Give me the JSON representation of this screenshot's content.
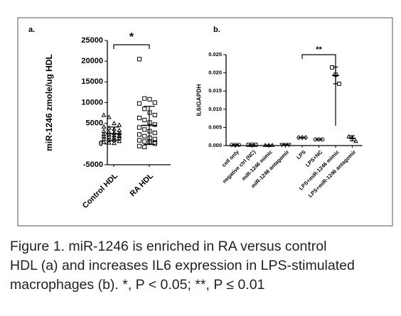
{
  "chart_data": [
    {
      "type": "dotplot",
      "panel": "a.",
      "ylabel": "miR-1246 zmole/ug HDL",
      "annotation": "*",
      "categories": [
        "Control HDL",
        "RA HDL"
      ],
      "markers": [
        "triangle",
        "square"
      ],
      "color": "#000000",
      "ylim": [
        -5000,
        25000
      ],
      "yticks": [
        -5000,
        0,
        5000,
        10000,
        15000,
        20000,
        25000
      ],
      "groups": [
        {
          "values": [
            7000,
            6500,
            5000,
            4600,
            4200,
            3900,
            3600,
            3300,
            3100,
            2900,
            2700,
            2600,
            2400,
            2300,
            2100,
            2000,
            1800,
            1700,
            1500,
            1400,
            1200,
            1000,
            900,
            700,
            500,
            300,
            200,
            1900
          ],
          "mean": 2500,
          "sd": 1600
        },
        {
          "values": [
            20500,
            11000,
            10800,
            10000,
            9800,
            8500,
            7600,
            7000,
            6300,
            5800,
            5200,
            4700,
            4000,
            3500,
            3100,
            2700,
            2300,
            1900,
            1500,
            1200,
            900,
            600,
            300,
            100,
            -500,
            -700,
            600,
            400
          ],
          "mean": 4500,
          "sd": 4600
        }
      ]
    },
    {
      "type": "dotplot",
      "panel": "b.",
      "ylabel": "IL6/GAPDH",
      "annotation": "**",
      "categories": [
        "cell only",
        "negative ctrl (NC)",
        "miR-1246 mimic",
        "miR-1246 antagomir",
        "LPS",
        "LPS+NC",
        "LPS+miR-1246 mimic",
        "LPS+miR-1246 antagomir"
      ],
      "markers": [
        "circle",
        "square",
        "triangle",
        "down-triangle",
        "diamond",
        "circle",
        "square",
        "triangle"
      ],
      "color": "#000000",
      "ylim": [
        0,
        0.025
      ],
      "yticks": [
        {
          "value": 0,
          "label": "0.000"
        },
        {
          "value": 0.005,
          "label": "0.005"
        },
        {
          "value": 0.01,
          "label": "0.010"
        },
        {
          "value": 0.015,
          "label": "0.015"
        },
        {
          "value": 0.02,
          "label": "0.020"
        },
        {
          "value": 0.025,
          "label": "0.025"
        }
      ],
      "groups": [
        {
          "values": [
            0.0002,
            0.0002,
            0.0002
          ],
          "mean": 0.0002,
          "sd": 2e-05
        },
        {
          "values": [
            0.0002,
            0.0002,
            0.0002
          ],
          "mean": 0.0002,
          "sd": 2e-05
        },
        {
          "values": [
            0.0001,
            0.0001,
            0.0001
          ],
          "mean": 0.0001,
          "sd": 2e-05
        },
        {
          "values": [
            0.0002,
            0.0002,
            0.0002
          ],
          "mean": 0.0002,
          "sd": 2e-05
        },
        {
          "values": [
            0.0022,
            0.0022,
            0.0022
          ],
          "mean": 0.0022,
          "sd": 5e-05
        },
        {
          "values": [
            0.0017,
            0.0017,
            0.0017
          ],
          "mean": 0.0017,
          "sd": 5e-05
        },
        {
          "values": [
            0.0215,
            0.0195,
            0.017
          ],
          "mean": 0.0193,
          "sd": 0.0023
        },
        {
          "values": [
            0.0025,
            0.0022,
            0.0012
          ],
          "mean": 0.002,
          "sd": 0.0007
        }
      ]
    }
  ],
  "caption": [
    "Figure 1. miR-1246 is enriched in RA versus control",
    "HDL (a) and increases IL6 expression in LPS-stimulated",
    "macrophages (b). *, P < 0.05; **, P ≤ 0.01"
  ]
}
